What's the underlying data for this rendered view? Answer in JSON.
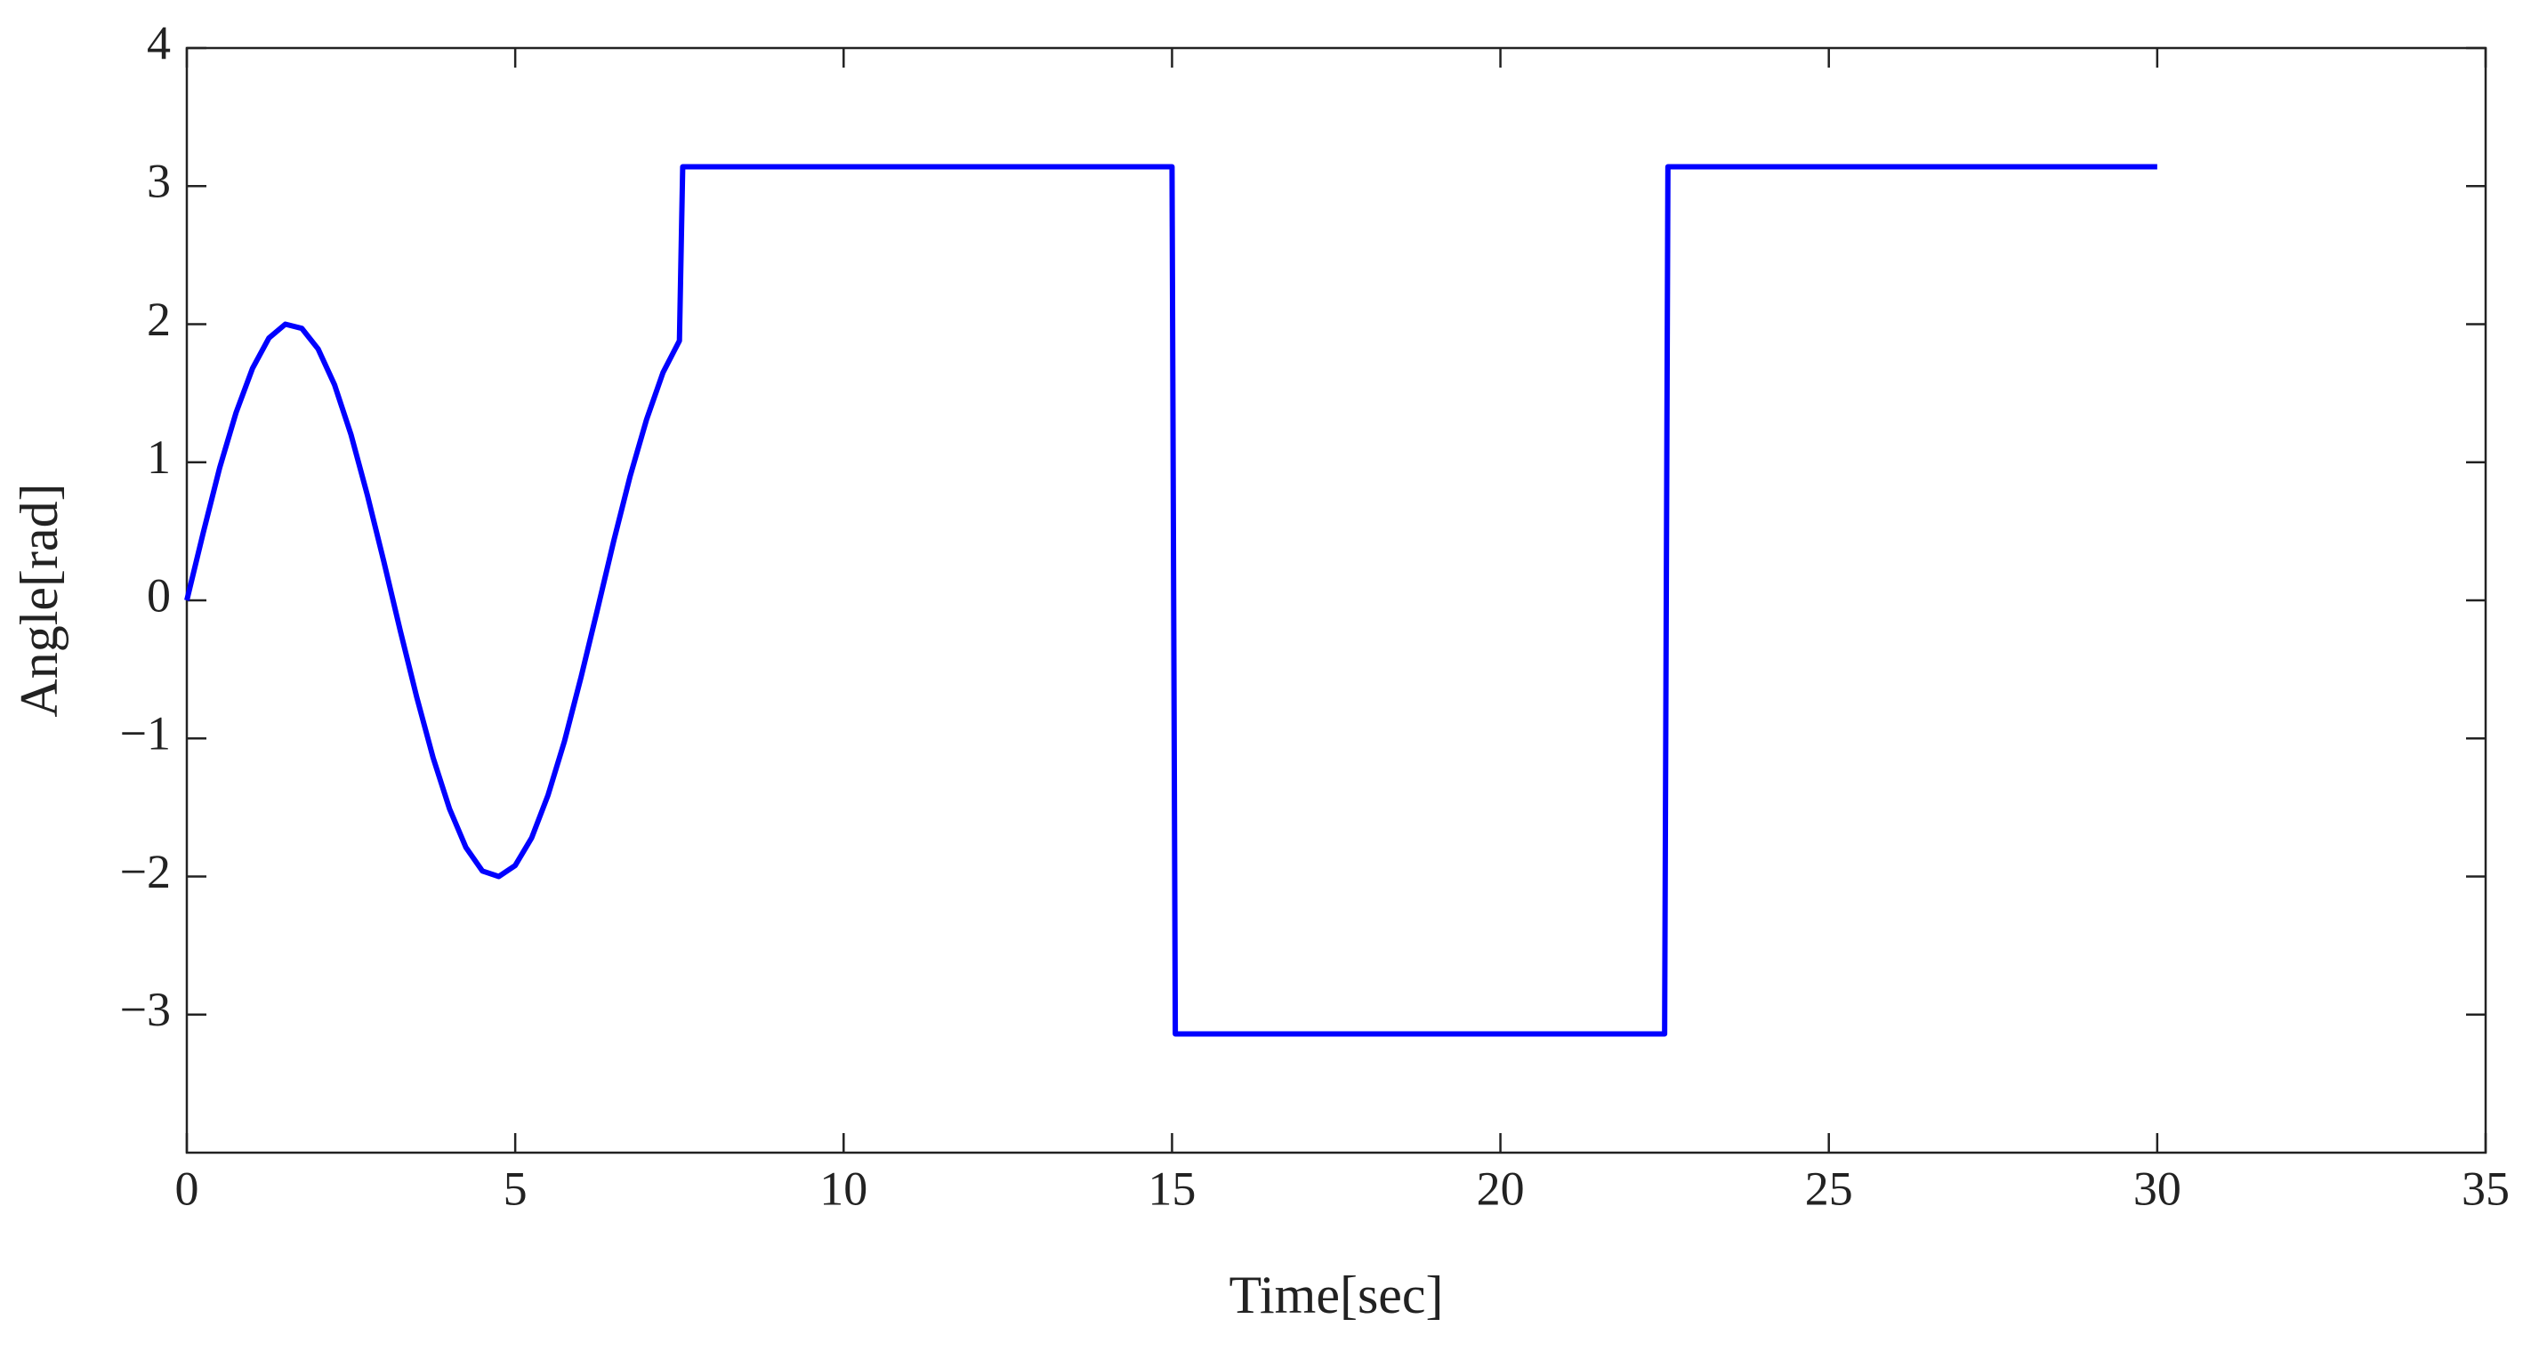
{
  "chart_data": {
    "type": "line",
    "x_label": "Time[sec]",
    "y_label": "Angle[rad]",
    "x": [
      0,
      0.25,
      0.5,
      0.75,
      1,
      1.25,
      1.5,
      1.75,
      2,
      2.25,
      2.5,
      2.75,
      3,
      3.25,
      3.5,
      3.75,
      4,
      4.25,
      4.5,
      4.75,
      5,
      5.25,
      5.5,
      5.75,
      6,
      6.25,
      6.5,
      6.75,
      7,
      7.25,
      7.5,
      7.55,
      15,
      15.05,
      22.5,
      22.55,
      30
    ],
    "series": [
      {
        "color": "#0000ff",
        "values": [
          0,
          0.49,
          0.96,
          1.36,
          1.68,
          1.9,
          2.0,
          1.97,
          1.82,
          1.56,
          1.2,
          0.76,
          0.28,
          -0.22,
          -0.7,
          -1.14,
          -1.51,
          -1.79,
          -1.96,
          -2.0,
          -1.92,
          -1.72,
          -1.41,
          -1.02,
          -0.56,
          -0.07,
          0.43,
          0.9,
          1.31,
          1.65,
          1.88,
          3.14,
          3.14,
          -3.14,
          -3.14,
          3.14,
          3.14
        ]
      }
    ],
    "xlim": [
      0,
      35
    ],
    "xticks": [
      0,
      5,
      10,
      15,
      20,
      25,
      30,
      35
    ],
    "ylim": [
      -4,
      4
    ],
    "yticks": [
      4,
      3,
      2,
      1,
      0,
      {
        "value": -1,
        "label": "−1"
      },
      {
        "value": -2,
        "label": "−2"
      },
      {
        "value": -3,
        "label": "−3"
      }
    ],
    "grid": false
  }
}
